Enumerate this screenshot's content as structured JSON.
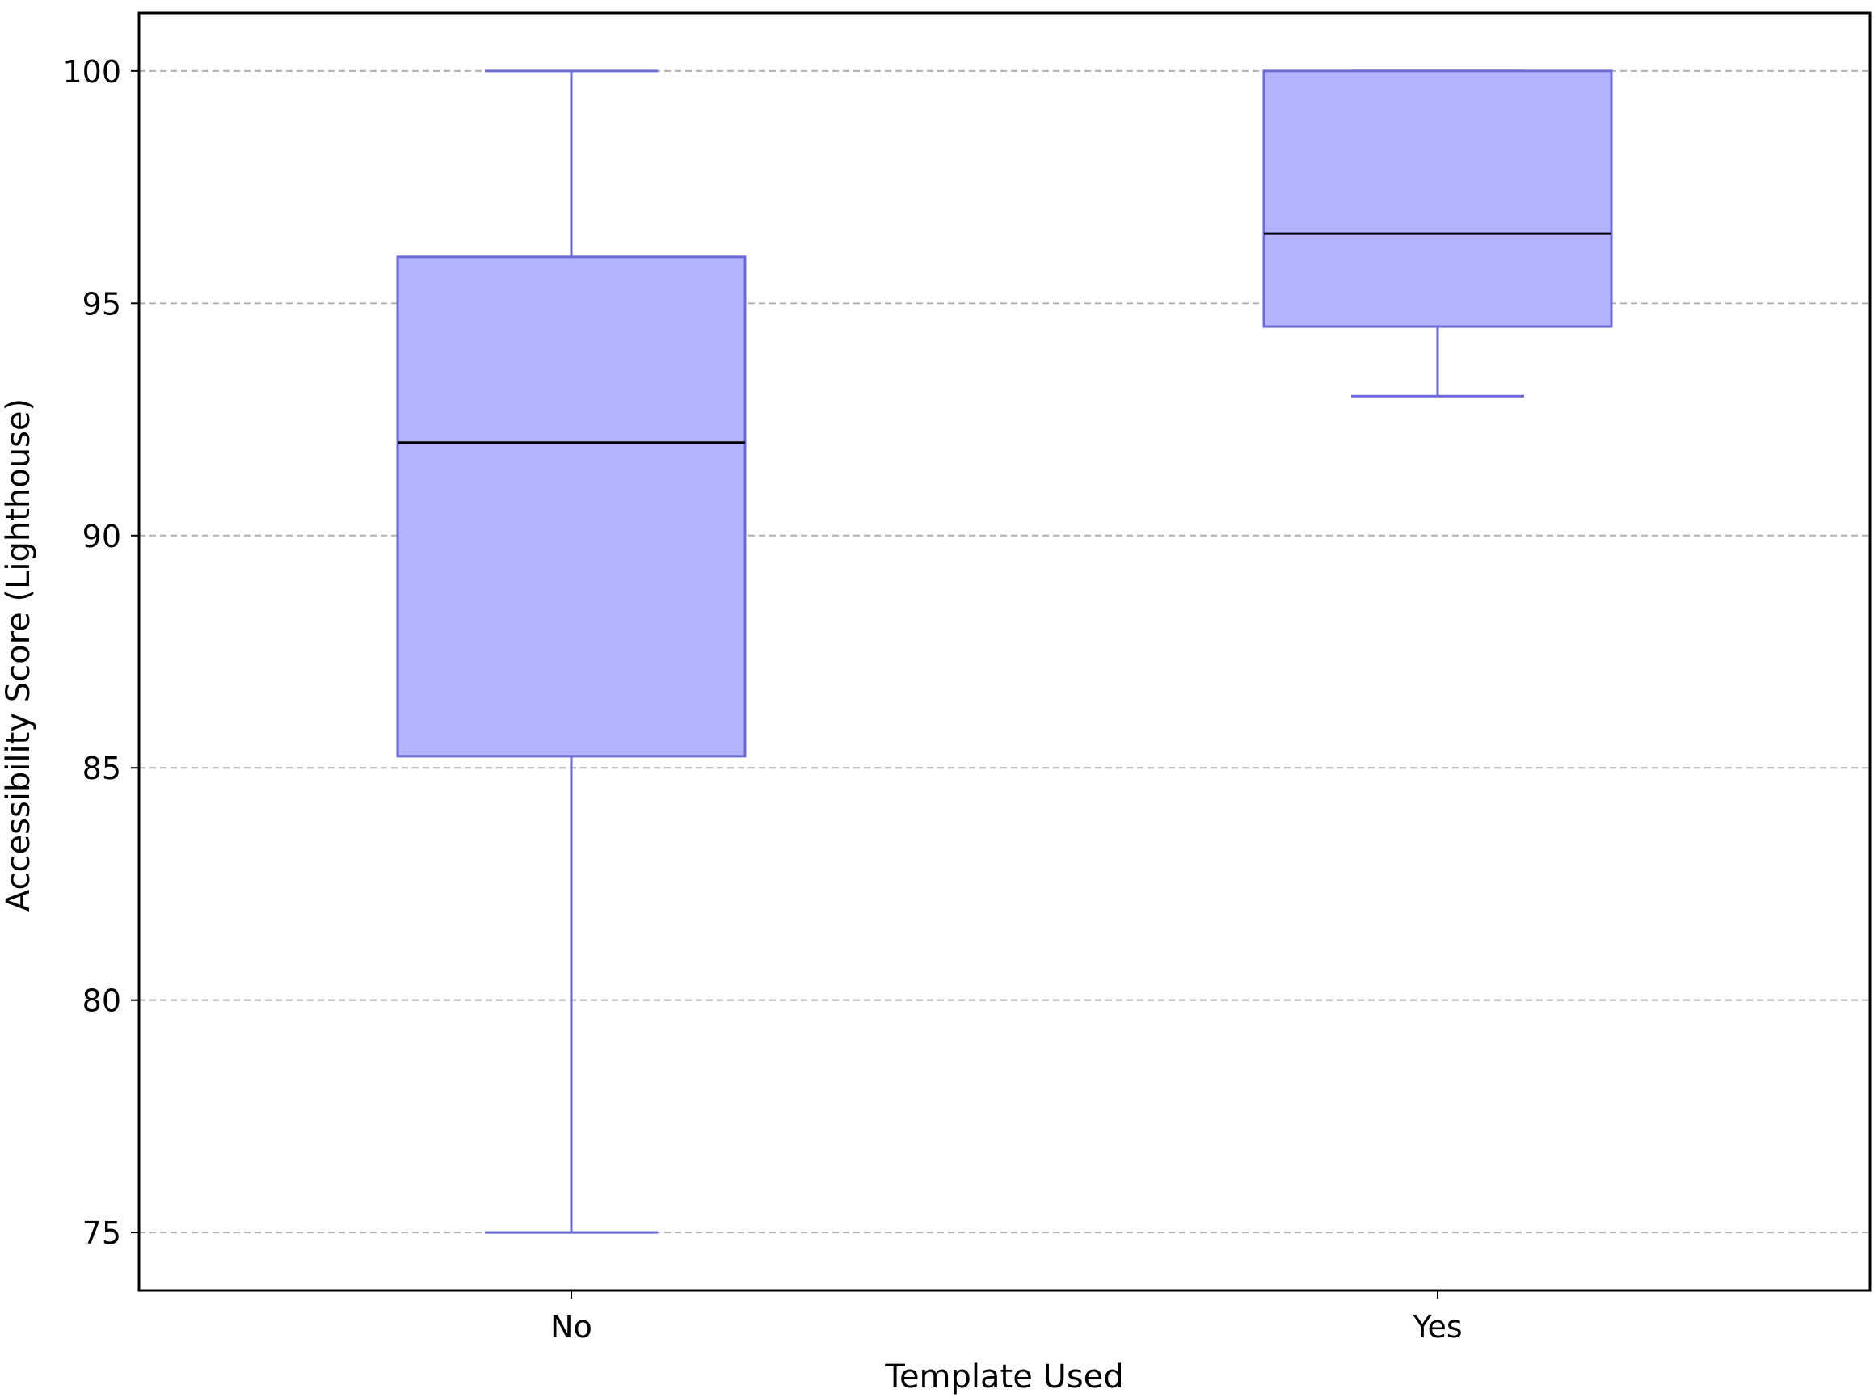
{
  "chart_data": {
    "type": "box",
    "title": "",
    "xlabel": "Template Used",
    "ylabel": "Accessibility Score (Lighthouse)",
    "categories": [
      "No",
      "Yes"
    ],
    "boxes": [
      {
        "category": "No",
        "whisker_low": 75,
        "q1": 85.25,
        "median": 92,
        "q3": 96,
        "whisker_high": 100
      },
      {
        "category": "Yes",
        "whisker_low": 93,
        "q1": 94.5,
        "median": 96.5,
        "q3": 100,
        "whisker_high": 100
      }
    ],
    "ylim": [
      73.75,
      101.25
    ],
    "yticks": [
      75,
      80,
      85,
      90,
      95,
      100
    ],
    "grid": "y-dashed",
    "legend": "none",
    "colors": {
      "box_fill": "#b3b3ff",
      "box_edge": "#6a6ad8",
      "median": "#000000",
      "grid": "#b0b0b0",
      "axes": "#000000"
    }
  }
}
